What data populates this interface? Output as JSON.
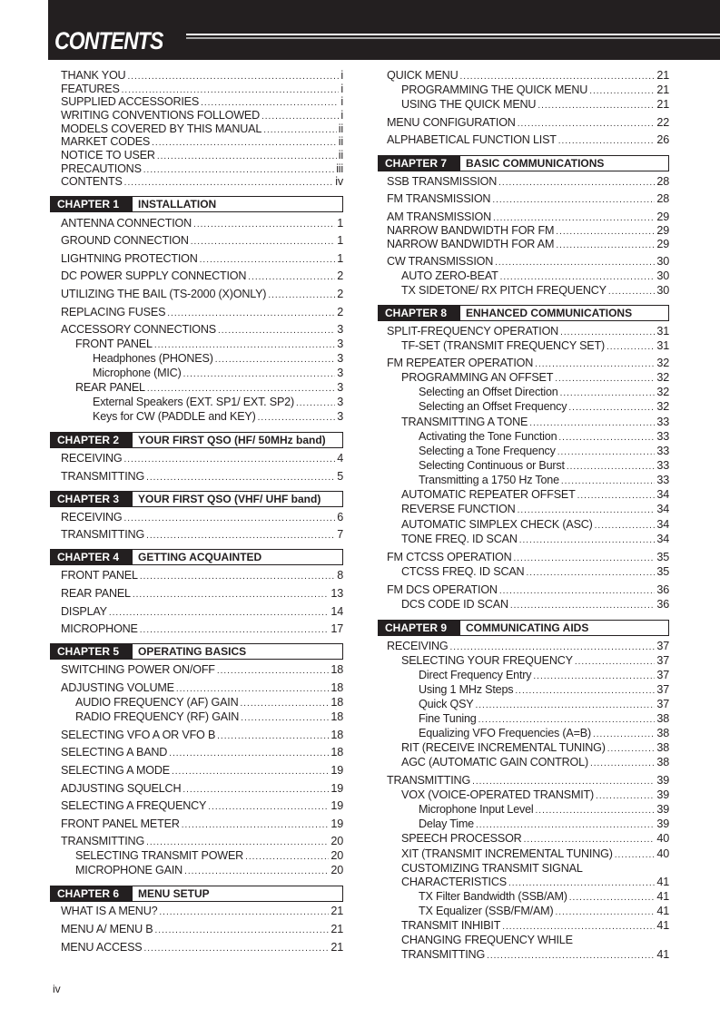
{
  "header": {
    "title": "CONTENTS"
  },
  "footer": {
    "page": "iv"
  },
  "columns": [
    [
      {
        "label": "THANK YOU",
        "page": "i",
        "level": 0
      },
      {
        "label": "FEATURES",
        "page": "i",
        "level": 0
      },
      {
        "label": "SUPPLIED ACCESSORIES",
        "page": "i",
        "level": 0
      },
      {
        "label": "WRITING CONVENTIONS FOLLOWED",
        "page": "i",
        "level": 0
      },
      {
        "label": "MODELS COVERED BY THIS MANUAL",
        "page": "ii",
        "level": 0
      },
      {
        "label": "MARKET CODES",
        "page": "ii",
        "level": 0
      },
      {
        "label": "NOTICE TO USER",
        "page": "ii",
        "level": 0
      },
      {
        "label": "PRECAUTIONS",
        "page": "iii",
        "level": 0
      },
      {
        "label": "CONTENTS",
        "page": "iv",
        "level": 0
      },
      {
        "chapter": "CHAPTER 1",
        "title": "INSTALLATION"
      },
      {
        "label": "ANTENNA CONNECTION",
        "page": "1",
        "level": 0
      },
      {
        "label": "GROUND CONNECTION",
        "page": "1",
        "level": 0
      },
      {
        "label": "LIGHTNING PROTECTION",
        "page": "1",
        "level": 0
      },
      {
        "label": "DC POWER SUPPLY CONNECTION",
        "page": "2",
        "level": 0
      },
      {
        "label": "UTILIZING THE BAIL (TS-2000 (X)ONLY)",
        "page": "2",
        "level": 0
      },
      {
        "label": "REPLACING FUSES",
        "page": "2",
        "level": 0
      },
      {
        "label": "ACCESSORY CONNECTIONS",
        "page": "3",
        "level": 0
      },
      {
        "label": "FRONT PANEL",
        "page": "3",
        "level": 1
      },
      {
        "label": "Headphones (PHONES)",
        "page": "3",
        "level": 2
      },
      {
        "label": "Microphone (MIC)",
        "page": "3",
        "level": 2
      },
      {
        "label": "REAR PANEL",
        "page": "3",
        "level": 1
      },
      {
        "label": "External Speakers (EXT. SP1/ EXT. SP2)",
        "page": "3",
        "level": 2
      },
      {
        "label": "Keys for CW (PADDLE and KEY)",
        "page": "3",
        "level": 2
      },
      {
        "chapter": "CHAPTER 2",
        "title": "YOUR FIRST QSO (HF/ 50MHz band)"
      },
      {
        "label": "RECEIVING",
        "page": "4",
        "level": 0
      },
      {
        "label": "TRANSMITTING",
        "page": "5",
        "level": 0
      },
      {
        "chapter": "CHAPTER 3",
        "title": "YOUR FIRST QSO (VHF/ UHF band)"
      },
      {
        "label": "RECEIVING",
        "page": "6",
        "level": 0
      },
      {
        "label": "TRANSMITTING",
        "page": "7",
        "level": 0
      },
      {
        "chapter": "CHAPTER 4",
        "title": "GETTING ACQUAINTED"
      },
      {
        "label": "FRONT PANEL",
        "page": "8",
        "level": 0
      },
      {
        "label": "REAR PANEL",
        "page": "13",
        "level": 0
      },
      {
        "label": "DISPLAY",
        "page": "14",
        "level": 0
      },
      {
        "label": "MICROPHONE",
        "page": "17",
        "level": 0
      },
      {
        "chapter": "CHAPTER 5",
        "title": "OPERATING BASICS"
      },
      {
        "label": "SWITCHING POWER ON/OFF",
        "page": "18",
        "level": 0
      },
      {
        "label": "ADJUSTING VOLUME",
        "page": "18",
        "level": 0
      },
      {
        "label": "AUDIO FREQUENCY (AF) GAIN",
        "page": "18",
        "level": 1
      },
      {
        "label": "RADIO FREQUENCY (RF) GAIN",
        "page": "18",
        "level": 1
      },
      {
        "label": "SELECTING VFO A OR VFO B",
        "page": "18",
        "level": 0
      },
      {
        "label": "SELECTING A BAND",
        "page": "18",
        "level": 0
      },
      {
        "label": "SELECTING A MODE",
        "page": "19",
        "level": 0
      },
      {
        "label": "ADJUSTING SQUELCH",
        "page": "19",
        "level": 0
      },
      {
        "label": "SELECTING A FREQUENCY",
        "page": "19",
        "level": 0
      },
      {
        "label": "FRONT PANEL METER",
        "page": "19",
        "level": 0
      },
      {
        "label": "TRANSMITTING",
        "page": "20",
        "level": 0
      },
      {
        "label": "SELECTING TRANSMIT POWER",
        "page": "20",
        "level": 1
      },
      {
        "label": "MICROPHONE GAIN",
        "page": "20",
        "level": 1
      },
      {
        "chapter": "CHAPTER 6",
        "title": "MENU SETUP"
      },
      {
        "label": "WHAT IS A MENU?",
        "page": "21",
        "level": 0
      },
      {
        "label": "MENU A/ MENU B",
        "page": "21",
        "level": 0
      },
      {
        "label": "MENU ACCESS",
        "page": "21",
        "level": 0
      }
    ],
    [
      {
        "label": "QUICK MENU",
        "page": "21",
        "level": 0
      },
      {
        "label": "PROGRAMMING THE QUICK MENU",
        "page": "21",
        "level": 1
      },
      {
        "label": "USING THE QUICK MENU",
        "page": "21",
        "level": 1
      },
      {
        "label": "MENU CONFIGURATION",
        "page": "22",
        "level": 0
      },
      {
        "label": "ALPHABETICAL FUNCTION LIST",
        "page": "26",
        "level": 0
      },
      {
        "chapter": "CHAPTER 7",
        "title": "BASIC COMMUNICATIONS"
      },
      {
        "label": "SSB TRANSMISSION",
        "page": "28",
        "level": 0
      },
      {
        "label": "FM TRANSMISSION",
        "page": "28",
        "level": 0
      },
      {
        "label": "AM TRANSMISSION",
        "page": "29",
        "level": 0
      },
      {
        "label": "NARROW BANDWIDTH FOR FM",
        "page": "29",
        "level": 0
      },
      {
        "label": "NARROW BANDWIDTH FOR AM",
        "page": "29",
        "level": 0
      },
      {
        "label": "CW TRANSMISSION",
        "page": "30",
        "level": 0
      },
      {
        "label": "AUTO ZERO-BEAT",
        "page": "30",
        "level": 1
      },
      {
        "label": "TX SIDETONE/ RX PITCH FREQUENCY",
        "page": "30",
        "level": 1
      },
      {
        "chapter": "CHAPTER 8",
        "title": "ENHANCED COMMUNICATIONS"
      },
      {
        "label": "SPLIT-FREQUENCY OPERATION",
        "page": "31",
        "level": 0
      },
      {
        "label": "TF-SET (TRANSMIT FREQUENCY SET)",
        "page": "31",
        "level": 1
      },
      {
        "label": "FM REPEATER OPERATION",
        "page": "32",
        "level": 0
      },
      {
        "label": "PROGRAMMING AN OFFSET",
        "page": "32",
        "level": 1
      },
      {
        "label": "Selecting an Offset Direction",
        "page": "32",
        "level": 2
      },
      {
        "label": "Selecting an Offset Frequency",
        "page": "32",
        "level": 2
      },
      {
        "label": "TRANSMITTING A TONE",
        "page": "33",
        "level": 1
      },
      {
        "label": "Activating the Tone Function",
        "page": "33",
        "level": 2
      },
      {
        "label": "Selecting a Tone Frequency",
        "page": "33",
        "level": 2
      },
      {
        "label": "Selecting Continuous or Burst",
        "page": "33",
        "level": 2
      },
      {
        "label": "Transmitting a 1750 Hz Tone",
        "page": "33",
        "level": 2
      },
      {
        "label": "AUTOMATIC REPEATER OFFSET",
        "page": "34",
        "level": 1
      },
      {
        "label": "REVERSE FUNCTION",
        "page": "34",
        "level": 1
      },
      {
        "label": "AUTOMATIC SIMPLEX CHECK (ASC)",
        "page": "34",
        "level": 1
      },
      {
        "label": "TONE FREQ. ID SCAN",
        "page": "34",
        "level": 1
      },
      {
        "label": "FM CTCSS OPERATION",
        "page": "35",
        "level": 0
      },
      {
        "label": "CTCSS FREQ. ID SCAN",
        "page": "35",
        "level": 1
      },
      {
        "label": "FM DCS OPERATION",
        "page": "36",
        "level": 0
      },
      {
        "label": "DCS CODE ID SCAN",
        "page": "36",
        "level": 1
      },
      {
        "chapter": "CHAPTER 9",
        "title": "COMMUNICATING AIDS"
      },
      {
        "label": "RECEIVING",
        "page": "37",
        "level": 0
      },
      {
        "label": "SELECTING YOUR FREQUENCY",
        "page": "37",
        "level": 1
      },
      {
        "label": "Direct Frequency Entry",
        "page": "37",
        "level": 2
      },
      {
        "label": "Using 1 MHz Steps",
        "page": "37",
        "level": 2
      },
      {
        "label": "Quick QSY",
        "page": "37",
        "level": 2
      },
      {
        "label": "Fine Tuning",
        "page": "38",
        "level": 2
      },
      {
        "label": "Equalizing VFO Frequencies (A=B)",
        "page": "38",
        "level": 2
      },
      {
        "label": "RIT (RECEIVE INCREMENTAL TUNING)",
        "page": "38",
        "level": 1
      },
      {
        "label": "AGC (AUTOMATIC GAIN CONTROL)",
        "page": "38",
        "level": 1
      },
      {
        "label": "TRANSMITTING",
        "page": "39",
        "level": 0
      },
      {
        "label": "VOX (VOICE-OPERATED TRANSMIT)",
        "page": "39",
        "level": 1
      },
      {
        "label": "Microphone Input Level",
        "page": "39",
        "level": 2
      },
      {
        "label": "Delay Time",
        "page": "39",
        "level": 2
      },
      {
        "label": "SPEECH PROCESSOR",
        "page": "40",
        "level": 1
      },
      {
        "label": "XIT (TRANSMIT INCREMENTAL TUNING)",
        "page": "40",
        "level": 1
      },
      {
        "label": "CUSTOMIZING TRANSMIT SIGNAL",
        "page": "",
        "level": 1
      },
      {
        "label": "CHARACTERISTICS",
        "page": "41",
        "level": 1
      },
      {
        "label": "TX Filter Bandwidth (SSB/AM)",
        "page": "41",
        "level": 2
      },
      {
        "label": "TX Equalizer (SSB/FM/AM)",
        "page": "41",
        "level": 2
      },
      {
        "label": "TRANSMIT INHIBIT",
        "page": "41",
        "level": 1
      },
      {
        "label": "CHANGING FREQUENCY WHILE",
        "page": "",
        "level": 1
      },
      {
        "label": "TRANSMITTING",
        "page": "41",
        "level": 1
      }
    ]
  ]
}
